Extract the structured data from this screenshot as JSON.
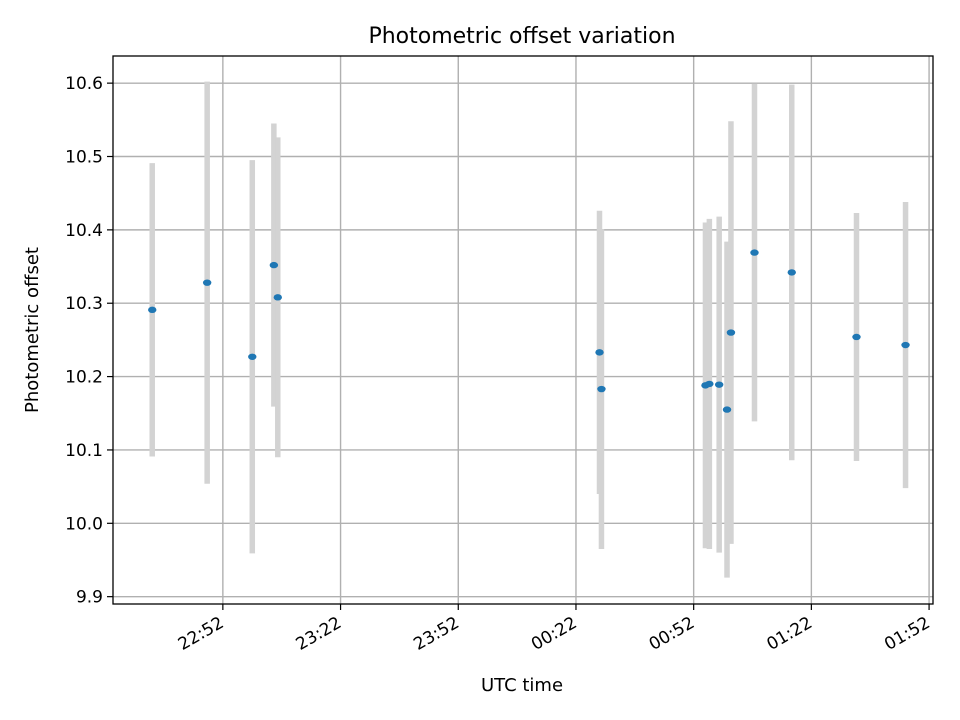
{
  "chart_data": {
    "type": "scatter",
    "title": "Photometric offset variation",
    "xlabel": "UTC time",
    "ylabel": "Photometric offset",
    "x_tick_labels": [
      "22:52",
      "23:22",
      "23:52",
      "00:22",
      "00:52",
      "01:22",
      "01:52"
    ],
    "y_tick_labels": [
      "9.9",
      "10.0",
      "10.1",
      "10.2",
      "10.3",
      "10.4",
      "10.5",
      "10.6"
    ],
    "xlim": [
      "2000-01-01T22:24:00",
      "2000-01-02T01:53:00"
    ],
    "ylim": [
      9.89,
      10.637
    ],
    "grid": true,
    "marker_color": "#1f77b4",
    "errorbar_color": "#d3d3d3",
    "series": [
      {
        "points": [
          {
            "x": "2000-01-01T22:34:00",
            "y": 10.291,
            "err": 0.2
          },
          {
            "x": "2000-01-01T22:48:00",
            "y": 10.328,
            "err": 0.274
          },
          {
            "x": "2000-01-01T22:59:30",
            "y": 10.227,
            "err": 0.268
          },
          {
            "x": "2000-01-01T23:05:00",
            "y": 10.352,
            "err": 0.193
          },
          {
            "x": "2000-01-01T23:06:00",
            "y": 10.308,
            "err": 0.218
          },
          {
            "x": "2000-01-02T00:28:00",
            "y": 10.233,
            "err": 0.193
          },
          {
            "x": "2000-01-02T00:28:30",
            "y": 10.183,
            "err": 0.218
          },
          {
            "x": "2000-01-02T00:55:00",
            "y": 10.188,
            "err": 0.222
          },
          {
            "x": "2000-01-02T00:56:00",
            "y": 10.19,
            "err": 0.225
          },
          {
            "x": "2000-01-02T00:58:30",
            "y": 10.189,
            "err": 0.229
          },
          {
            "x": "2000-01-02T01:00:30",
            "y": 10.155,
            "err": 0.229
          },
          {
            "x": "2000-01-02T01:01:30",
            "y": 10.26,
            "err": 0.288
          },
          {
            "x": "2000-01-02T01:07:30",
            "y": 10.369,
            "err": 0.23
          },
          {
            "x": "2000-01-02T01:17:00",
            "y": 10.342,
            "err": 0.256
          },
          {
            "x": "2000-01-02T01:33:30",
            "y": 10.254,
            "err": 0.169
          },
          {
            "x": "2000-01-02T01:46:00",
            "y": 10.243,
            "err": 0.195
          }
        ]
      }
    ]
  }
}
